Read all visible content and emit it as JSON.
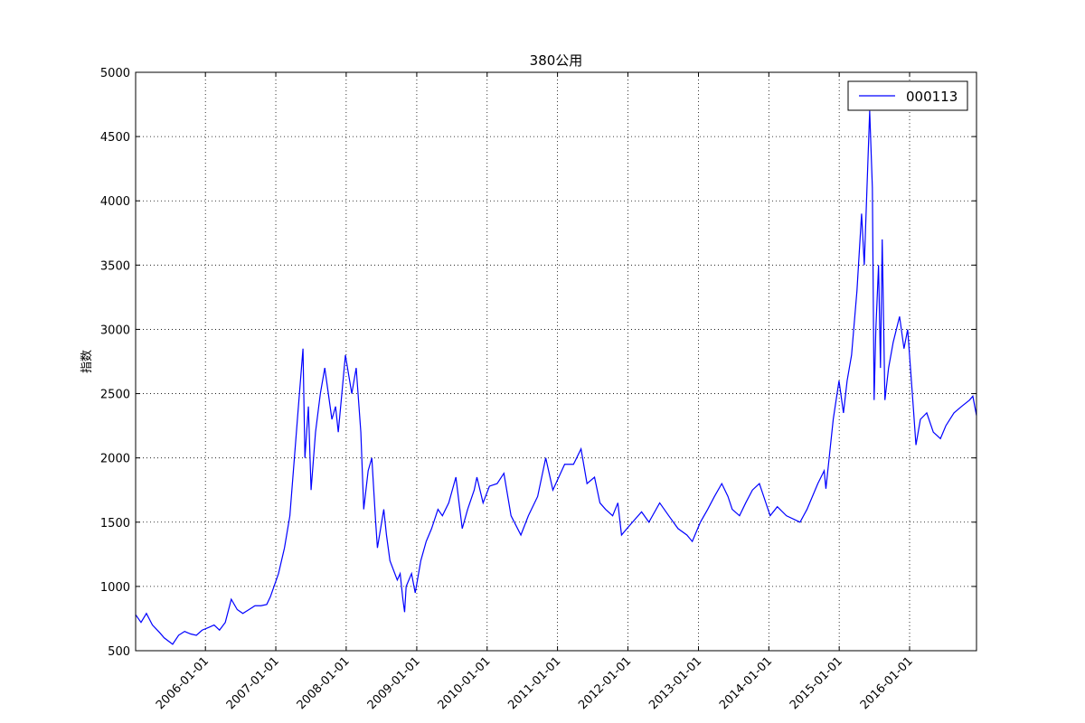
{
  "chart_data": {
    "type": "line",
    "title": "380公用",
    "y_label": "指数",
    "x": [
      "2005-01-04",
      "2005-02-01",
      "2005-03-01",
      "2005-04-01",
      "2005-05-09",
      "2005-06-01",
      "2005-07-15",
      "2005-08-15",
      "2005-09-15",
      "2005-10-17",
      "2005-11-15",
      "2005-12-15",
      "2006-01-16",
      "2006-02-15",
      "2006-03-15",
      "2006-04-14",
      "2006-05-15",
      "2006-06-15",
      "2006-07-14",
      "2006-08-15",
      "2006-09-15",
      "2006-10-16",
      "2006-11-15",
      "2006-12-04",
      "2007-01-15",
      "2007-02-15",
      "2007-03-15",
      "2007-04-23",
      "2007-05-22",
      "2007-06-01",
      "2007-06-19",
      "2007-07-03",
      "2007-07-26",
      "2007-08-20",
      "2007-09-12",
      "2007-10-19",
      "2007-11-07",
      "2007-11-21",
      "2007-12-28",
      "2008-01-30",
      "2008-02-22",
      "2008-03-17",
      "2008-04-01",
      "2008-04-24",
      "2008-05-13",
      "2008-06-02",
      "2008-06-11",
      "2008-07-14",
      "2008-07-28",
      "2008-08-15",
      "2008-09-22",
      "2008-10-07",
      "2008-10-21",
      "2008-10-30",
      "2008-11-07",
      "2008-12-05",
      "2008-12-24",
      "2009-01-22",
      "2009-02-19",
      "2009-03-19",
      "2009-04-21",
      "2009-05-14",
      "2009-06-16",
      "2009-07-23",
      "2009-08-25",
      "2009-09-22",
      "2009-10-26",
      "2009-11-09",
      "2009-12-11",
      "2010-01-13",
      "2010-02-22",
      "2010-03-29",
      "2010-05-05",
      "2010-06-25",
      "2010-08-03",
      "2010-09-20",
      "2010-11-01",
      "2010-12-08",
      "2011-02-07",
      "2011-03-25",
      "2011-05-03",
      "2011-06-03",
      "2011-07-12",
      "2011-08-09",
      "2011-09-07",
      "2011-10-14",
      "2011-11-10",
      "2011-11-29",
      "2011-12-27",
      "2012-01-25",
      "2012-03-12",
      "2012-04-19",
      "2012-06-14",
      "2012-07-31",
      "2012-09-17",
      "2012-11-02",
      "2012-11-30",
      "2013-01-11",
      "2013-02-18",
      "2013-03-25",
      "2013-05-02",
      "2013-06-03",
      "2013-06-25",
      "2013-08-02",
      "2013-09-03",
      "2013-10-08",
      "2013-11-13",
      "2014-01-08",
      "2014-02-14",
      "2014-04-02",
      "2014-06-12",
      "2014-07-18",
      "2014-09-12",
      "2014-10-15",
      "2014-10-24",
      "2014-12-01",
      "2014-12-31",
      "2015-01-23",
      "2015-02-11",
      "2015-03-06",
      "2015-04-03",
      "2015-04-27",
      "2015-05-11",
      "2015-05-25",
      "2015-06-08",
      "2015-06-22",
      "2015-07-01",
      "2015-07-10",
      "2015-07-24",
      "2015-08-03",
      "2015-08-12",
      "2015-08-26",
      "2015-09-14",
      "2015-10-08",
      "2015-11-10",
      "2015-12-03",
      "2015-12-22",
      "2016-01-20",
      "2016-02-03",
      "2016-02-26",
      "2016-03-30",
      "2016-05-03",
      "2016-06-09",
      "2016-07-07",
      "2016-08-18",
      "2016-09-26",
      "2016-11-07",
      "2016-11-24",
      "2016-12-13"
    ],
    "series": [
      {
        "name": "000113",
        "color": "#0000ff",
        "values": [
          780,
          720,
          790,
          700,
          640,
          600,
          550,
          620,
          650,
          630,
          620,
          660,
          680,
          700,
          660,
          720,
          900,
          820,
          790,
          820,
          850,
          850,
          860,
          920,
          1100,
          1300,
          1550,
          2300,
          2850,
          2000,
          2400,
          1750,
          2200,
          2500,
          2700,
          2300,
          2400,
          2200,
          2800,
          2500,
          2700,
          2200,
          1600,
          1900,
          2000,
          1500,
          1300,
          1600,
          1400,
          1200,
          1050,
          1100,
          900,
          800,
          1000,
          1100,
          950,
          1200,
          1350,
          1450,
          1600,
          1550,
          1650,
          1850,
          1450,
          1600,
          1750,
          1850,
          1650,
          1780,
          1800,
          1880,
          1550,
          1400,
          1550,
          1700,
          2000,
          1750,
          1950,
          1950,
          2070,
          1800,
          1850,
          1650,
          1600,
          1550,
          1650,
          1400,
          1450,
          1500,
          1580,
          1500,
          1650,
          1550,
          1450,
          1400,
          1350,
          1500,
          1600,
          1700,
          1800,
          1700,
          1600,
          1550,
          1650,
          1750,
          1800,
          1550,
          1620,
          1550,
          1500,
          1600,
          1800,
          1900,
          1760,
          2300,
          2600,
          2350,
          2600,
          2800,
          3300,
          3900,
          3500,
          4100,
          4700,
          4100,
          2450,
          3000,
          3500,
          2700,
          3700,
          2450,
          2700,
          2900,
          3100,
          2850,
          3000,
          2400,
          2100,
          2300,
          2350,
          2200,
          2150,
          2250,
          2350,
          2400,
          2450,
          2480,
          2330
        ]
      }
    ],
    "xlim": [
      "2005-01-04",
      "2016-12-13"
    ],
    "xticks": [
      "2006-01-01",
      "2007-01-01",
      "2008-01-01",
      "2009-01-01",
      "2010-01-01",
      "2011-01-01",
      "2012-01-01",
      "2013-01-01",
      "2014-01-01",
      "2015-01-01",
      "2016-01-01"
    ],
    "ylim": [
      500,
      5000
    ],
    "yticks": [
      500,
      1000,
      1500,
      2000,
      2500,
      3000,
      3500,
      4000,
      4500,
      5000
    ],
    "grid": true,
    "legend": "upper right"
  }
}
